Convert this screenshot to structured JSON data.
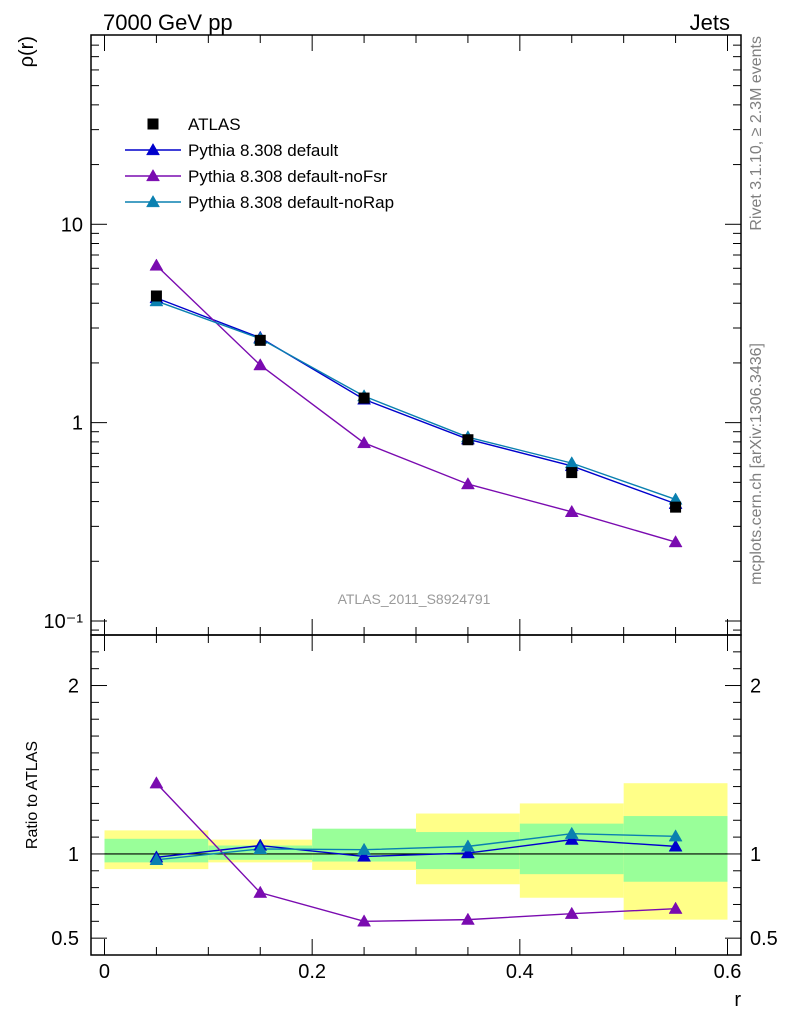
{
  "header": {
    "left": "7000 GeV pp",
    "right": "Jets"
  },
  "side_labels": {
    "rivet": "Rivet 3.1.10, ≥ 2.3M events",
    "mcplots": "mcplots.cern.ch [arXiv:1306.3436]"
  },
  "chart_data": [
    {
      "type": "line",
      "panel": "main",
      "ylabel": "ρ(r)",
      "xlabel": "",
      "yscale": "log",
      "ylim": [
        0.085,
        90
      ],
      "xlim": [
        -0.013,
        0.613
      ],
      "y_ticks": [
        {
          "value": 10,
          "label": "10"
        },
        {
          "value": 1,
          "label": "1"
        },
        {
          "value": 0.1,
          "label": "10⁻¹"
        }
      ],
      "analysis_label": "ATLAS_2011_S8924791",
      "legend_position": "top-left",
      "x": [
        0.05,
        0.15,
        0.25,
        0.35,
        0.45,
        0.55
      ],
      "series": [
        {
          "name": "ATLAS",
          "kind": "data",
          "marker": "square",
          "color": "#000000",
          "values": [
            4.35,
            2.6,
            1.33,
            0.82,
            0.56,
            0.375
          ]
        },
        {
          "name": "Pythia 8.308 default",
          "kind": "mc",
          "marker": "triangle",
          "color": "#0000cc",
          "values": [
            4.25,
            2.68,
            1.31,
            0.825,
            0.605,
            0.39
          ]
        },
        {
          "name": "Pythia 8.308 default-noFsr",
          "kind": "mc",
          "marker": "triangle",
          "color": "#7a0bb0",
          "values": [
            6.2,
            1.95,
            0.79,
            0.49,
            0.355,
            0.25
          ]
        },
        {
          "name": "Pythia 8.308 default-noRap",
          "kind": "mc",
          "marker": "triangle",
          "color": "#0a80b0",
          "values": [
            4.1,
            2.65,
            1.36,
            0.845,
            0.625,
            0.41
          ]
        }
      ]
    },
    {
      "type": "line",
      "panel": "ratio",
      "ylabel": "Ratio to ATLAS",
      "xlabel": "r",
      "ylim": [
        0.4,
        2.3
      ],
      "xlim": [
        -0.013,
        0.613
      ],
      "x_ticks": [
        {
          "value": 0,
          "label": "0"
        },
        {
          "value": 0.2,
          "label": "0.2"
        },
        {
          "value": 0.4,
          "label": "0.4"
        },
        {
          "value": 0.6,
          "label": "0.6"
        }
      ],
      "y_ticks": [
        {
          "value": 2,
          "label": "2"
        },
        {
          "value": 1,
          "label": "1"
        },
        {
          "value": 0.5,
          "label": "0.5"
        }
      ],
      "reference_line": 1,
      "bands": [
        {
          "x0": 0.0,
          "x1": 0.1,
          "inner": [
            0.95,
            1.09
          ],
          "outer": [
            0.91,
            1.14
          ]
        },
        {
          "x0": 0.1,
          "x1": 0.2,
          "inner": [
            0.965,
            1.05
          ],
          "outer": [
            0.95,
            1.085
          ]
        },
        {
          "x0": 0.2,
          "x1": 0.3,
          "inner": [
            0.955,
            1.15
          ],
          "outer": [
            0.905,
            1.145
          ]
        },
        {
          "x0": 0.3,
          "x1": 0.4,
          "inner": [
            0.91,
            1.13
          ],
          "outer": [
            0.82,
            1.24
          ]
        },
        {
          "x0": 0.4,
          "x1": 0.5,
          "inner": [
            0.88,
            1.18
          ],
          "outer": [
            0.74,
            1.3
          ]
        },
        {
          "x0": 0.5,
          "x1": 0.6,
          "inner": [
            0.835,
            1.225
          ],
          "outer": [
            0.61,
            1.42
          ]
        }
      ],
      "band_colors": {
        "inner": "#99ff99",
        "outer": "#ffff88"
      },
      "x": [
        0.05,
        0.15,
        0.25,
        0.35,
        0.45,
        0.55
      ],
      "series": [
        {
          "name": "Pythia 8.308 default",
          "color": "#0000cc",
          "values": [
            0.98,
            1.05,
            0.985,
            1.005,
            1.085,
            1.045
          ]
        },
        {
          "name": "Pythia 8.308 default-noFsr",
          "color": "#7a0bb0",
          "values": [
            1.42,
            0.77,
            0.6,
            0.61,
            0.645,
            0.675
          ]
        },
        {
          "name": "Pythia 8.308 default-noRap",
          "color": "#0a80b0",
          "values": [
            0.965,
            1.03,
            1.025,
            1.045,
            1.12,
            1.105
          ]
        }
      ]
    }
  ]
}
